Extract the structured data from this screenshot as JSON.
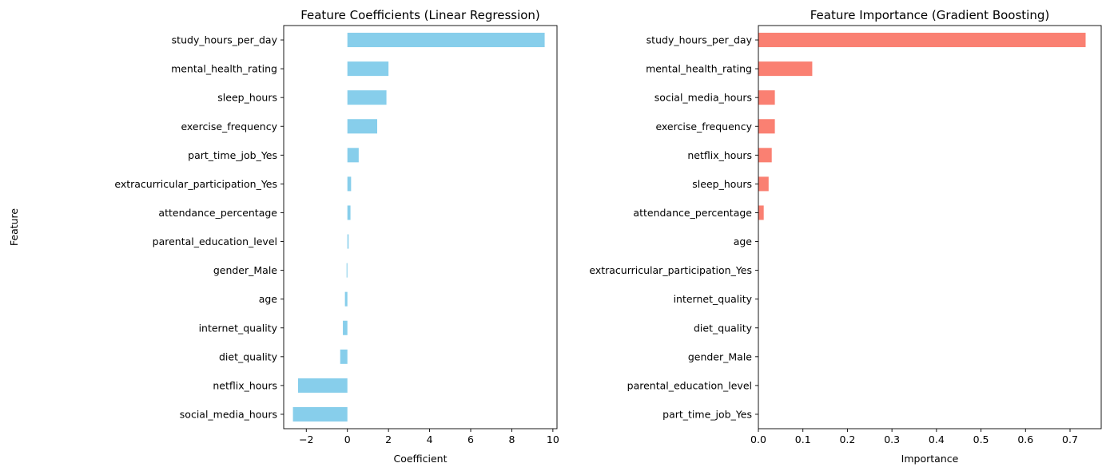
{
  "chart_data": [
    {
      "type": "bar",
      "orientation": "horizontal",
      "title": "Feature Coefficients (Linear Regression)",
      "xlabel": "Coefficient",
      "ylabel": "Feature",
      "xlim": [
        -3.1,
        10.2
      ],
      "xticks": [
        -2,
        0,
        2,
        4,
        6,
        8,
        10
      ],
      "xtick_labels": [
        "−2",
        "0",
        "2",
        "4",
        "6",
        "8",
        "10"
      ],
      "color": "#87ceeb",
      "categories": [
        "study_hours_per_day",
        "mental_health_rating",
        "sleep_hours",
        "exercise_frequency",
        "part_time_job_Yes",
        "extracurricular_participation_Yes",
        "attendance_percentage",
        "parental_education_level",
        "gender_Male",
        "age",
        "internet_quality",
        "diet_quality",
        "netflix_hours",
        "social_media_hours"
      ],
      "values": [
        9.6,
        2.0,
        1.9,
        1.45,
        0.55,
        0.18,
        0.15,
        0.06,
        -0.04,
        -0.12,
        -0.22,
        -0.35,
        -2.4,
        -2.65
      ]
    },
    {
      "type": "bar",
      "orientation": "horizontal",
      "title": "Feature Importance (Gradient Boosting)",
      "xlabel": "Importance",
      "ylabel": "",
      "xlim": [
        0,
        0.77
      ],
      "xticks": [
        0.0,
        0.1,
        0.2,
        0.3,
        0.4,
        0.5,
        0.6,
        0.7
      ],
      "xtick_labels": [
        "0.0",
        "0.1",
        "0.2",
        "0.3",
        "0.4",
        "0.5",
        "0.6",
        "0.7"
      ],
      "color": "#fa8072",
      "categories": [
        "study_hours_per_day",
        "mental_health_rating",
        "social_media_hours",
        "exercise_frequency",
        "netflix_hours",
        "sleep_hours",
        "attendance_percentage",
        "age",
        "extracurricular_participation_Yes",
        "internet_quality",
        "diet_quality",
        "gender_Male",
        "parental_education_level",
        "part_time_job_Yes"
      ],
      "values": [
        0.735,
        0.121,
        0.037,
        0.037,
        0.03,
        0.023,
        0.012,
        0.0005,
        0.0003,
        0.0003,
        0.0002,
        0.0001,
        0.0001,
        0.0001
      ]
    }
  ]
}
